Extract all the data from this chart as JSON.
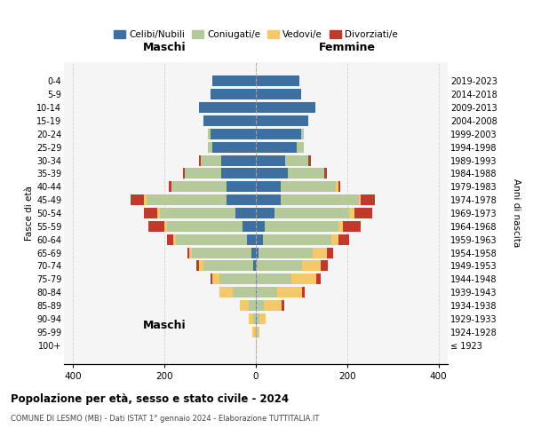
{
  "age_groups": [
    "100+",
    "95-99",
    "90-94",
    "85-89",
    "80-84",
    "75-79",
    "70-74",
    "65-69",
    "60-64",
    "55-59",
    "50-54",
    "45-49",
    "40-44",
    "35-39",
    "30-34",
    "25-29",
    "20-24",
    "15-19",
    "10-14",
    "5-9",
    "0-4"
  ],
  "birth_years": [
    "≤ 1923",
    "1924-1928",
    "1929-1933",
    "1934-1938",
    "1939-1943",
    "1944-1948",
    "1949-1953",
    "1954-1958",
    "1959-1963",
    "1964-1968",
    "1969-1973",
    "1974-1978",
    "1979-1983",
    "1984-1988",
    "1989-1993",
    "1994-1998",
    "1999-2003",
    "2004-2008",
    "2009-2013",
    "2014-2018",
    "2019-2023"
  ],
  "males": {
    "celibi": [
      0,
      0,
      0,
      0,
      0,
      0,
      5,
      10,
      20,
      30,
      45,
      65,
      65,
      75,
      75,
      95,
      100,
      115,
      125,
      100,
      95
    ],
    "coniugati": [
      0,
      2,
      5,
      15,
      50,
      80,
      110,
      130,
      155,
      165,
      165,
      175,
      120,
      80,
      45,
      10,
      5,
      0,
      0,
      0,
      0
    ],
    "vedovi": [
      0,
      5,
      10,
      20,
      30,
      15,
      10,
      5,
      5,
      5,
      5,
      5,
      0,
      0,
      0,
      0,
      0,
      0,
      0,
      0,
      0
    ],
    "divorziati": [
      0,
      0,
      0,
      0,
      0,
      5,
      5,
      5,
      15,
      35,
      30,
      30,
      5,
      5,
      5,
      0,
      0,
      0,
      0,
      0,
      0
    ]
  },
  "females": {
    "nubili": [
      0,
      0,
      2,
      2,
      2,
      2,
      2,
      5,
      15,
      20,
      40,
      55,
      55,
      70,
      65,
      90,
      100,
      115,
      130,
      100,
      95
    ],
    "coniugate": [
      0,
      3,
      5,
      15,
      45,
      75,
      100,
      120,
      150,
      160,
      165,
      170,
      120,
      80,
      50,
      15,
      5,
      0,
      0,
      0,
      0
    ],
    "vedove": [
      2,
      5,
      15,
      40,
      55,
      55,
      40,
      30,
      15,
      10,
      10,
      5,
      5,
      0,
      0,
      0,
      0,
      0,
      0,
      0,
      0
    ],
    "divorziate": [
      0,
      0,
      0,
      5,
      5,
      10,
      15,
      15,
      25,
      40,
      40,
      30,
      5,
      5,
      5,
      0,
      0,
      0,
      0,
      0,
      0
    ]
  },
  "colors": {
    "celibi_nubili": "#3d6fa0",
    "coniugati": "#b5c99a",
    "vedovi": "#f5c96a",
    "divorziati": "#c0392b"
  },
  "xlim": 420,
  "title_main": "Popolazione per età, sesso e stato civile - 2024",
  "title_sub": "COMUNE DI LESMO (MB) - Dati ISTAT 1° gennaio 2024 - Elaborazione TUTTITALIA.IT",
  "ylabel_left": "Fasce di età",
  "ylabel_right": "Anni di nascita",
  "xlabel_maschi": "Maschi",
  "xlabel_femmine": "Femmine"
}
